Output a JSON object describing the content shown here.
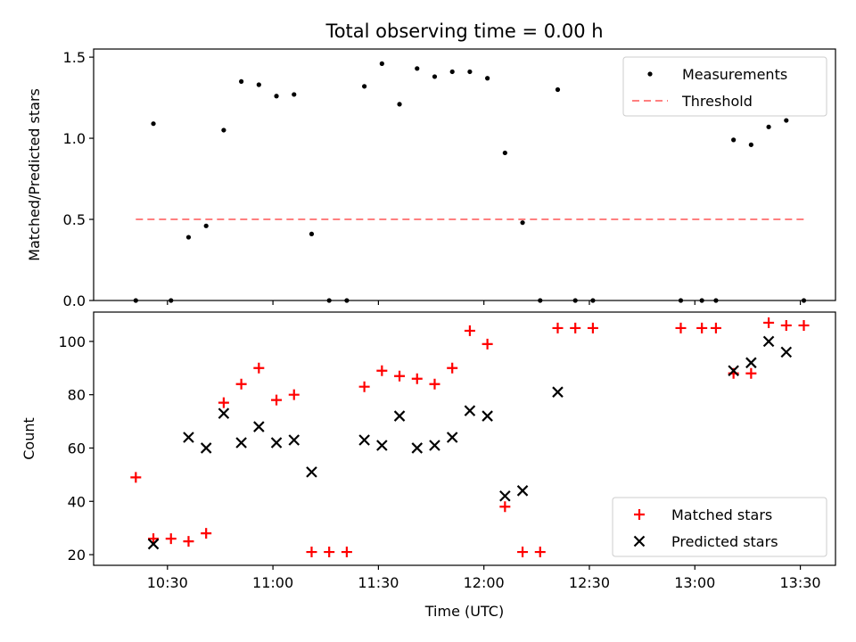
{
  "chart_data": [
    {
      "type": "scatter",
      "title": "Total observing time = 0.00 h",
      "xlabel": "",
      "ylabel": "Matched/Predicted stars",
      "ylim": [
        0,
        1.55
      ],
      "yticks": [
        "0.0",
        "0.5",
        "1.0",
        "1.5"
      ],
      "legend_position": "top-right",
      "series": [
        {
          "name": "Measurements",
          "marker": "dot",
          "color": "#000000",
          "points": [
            [
              "10:21",
              0.0
            ],
            [
              "10:26",
              1.09
            ],
            [
              "10:31",
              0.0
            ],
            [
              "10:36",
              0.39
            ],
            [
              "10:41",
              0.46
            ],
            [
              "10:46",
              1.05
            ],
            [
              "10:51",
              1.35
            ],
            [
              "10:56",
              1.33
            ],
            [
              "11:01",
              1.26
            ],
            [
              "11:06",
              1.27
            ],
            [
              "11:11",
              0.41
            ],
            [
              "11:16",
              0.0
            ],
            [
              "11:21",
              0.0
            ],
            [
              "11:26",
              1.32
            ],
            [
              "11:31",
              1.46
            ],
            [
              "11:36",
              1.21
            ],
            [
              "11:41",
              1.43
            ],
            [
              "11:46",
              1.38
            ],
            [
              "11:51",
              1.41
            ],
            [
              "11:56",
              1.41
            ],
            [
              "12:01",
              1.37
            ],
            [
              "12:06",
              0.91
            ],
            [
              "12:11",
              0.48
            ],
            [
              "12:16",
              0.0
            ],
            [
              "12:21",
              1.3
            ],
            [
              "12:26",
              0.0
            ],
            [
              "12:31",
              0.0
            ],
            [
              "12:56",
              0.0
            ],
            [
              "13:02",
              0.0
            ],
            [
              "13:06",
              0.0
            ],
            [
              "13:11",
              0.99
            ],
            [
              "13:16",
              0.96
            ],
            [
              "13:21",
              1.07
            ],
            [
              "13:26",
              1.11
            ],
            [
              "13:31",
              0.0
            ]
          ]
        },
        {
          "name": "Threshold",
          "marker": "dashed-line",
          "color": "#ff7f7f",
          "points": [
            [
              "10:21",
              0.5
            ],
            [
              "13:31",
              0.5
            ]
          ]
        }
      ]
    },
    {
      "type": "scatter",
      "title": "",
      "xlabel": "Time (UTC)",
      "ylabel": "Count",
      "ylim": [
        16,
        111
      ],
      "yticks": [
        "20",
        "40",
        "60",
        "80",
        "100"
      ],
      "xlim": [
        "10:09",
        "13:40"
      ],
      "xticks": [
        "10:30",
        "11:00",
        "11:30",
        "12:00",
        "12:30",
        "13:00",
        "13:30"
      ],
      "legend_position": "bottom-right",
      "series": [
        {
          "name": "Matched stars",
          "marker": "plus",
          "color": "#ff0000",
          "points": [
            [
              "10:21",
              49
            ],
            [
              "10:26",
              26
            ],
            [
              "10:31",
              26
            ],
            [
              "10:36",
              25
            ],
            [
              "10:41",
              28
            ],
            [
              "10:46",
              77
            ],
            [
              "10:51",
              84
            ],
            [
              "10:56",
              90
            ],
            [
              "11:01",
              78
            ],
            [
              "11:06",
              80
            ],
            [
              "11:11",
              21
            ],
            [
              "11:16",
              21
            ],
            [
              "11:21",
              21
            ],
            [
              "11:26",
              83
            ],
            [
              "11:31",
              89
            ],
            [
              "11:36",
              87
            ],
            [
              "11:41",
              86
            ],
            [
              "11:46",
              84
            ],
            [
              "11:51",
              90
            ],
            [
              "11:56",
              104
            ],
            [
              "12:01",
              99
            ],
            [
              "12:06",
              38
            ],
            [
              "12:11",
              21
            ],
            [
              "12:16",
              21
            ],
            [
              "12:21",
              105
            ],
            [
              "12:26",
              105
            ],
            [
              "12:31",
              105
            ],
            [
              "12:56",
              105
            ],
            [
              "13:02",
              105
            ],
            [
              "13:06",
              105
            ],
            [
              "13:11",
              88
            ],
            [
              "13:16",
              88
            ],
            [
              "13:21",
              107
            ],
            [
              "13:26",
              106
            ],
            [
              "13:31",
              106
            ]
          ]
        },
        {
          "name": "Predicted stars",
          "marker": "x",
          "color": "#000000",
          "points": [
            [
              "10:26",
              24
            ],
            [
              "10:36",
              64
            ],
            [
              "10:41",
              60
            ],
            [
              "10:46",
              73
            ],
            [
              "10:51",
              62
            ],
            [
              "10:56",
              68
            ],
            [
              "11:01",
              62
            ],
            [
              "11:06",
              63
            ],
            [
              "11:11",
              51
            ],
            [
              "11:26",
              63
            ],
            [
              "11:31",
              61
            ],
            [
              "11:36",
              72
            ],
            [
              "11:41",
              60
            ],
            [
              "11:46",
              61
            ],
            [
              "11:51",
              64
            ],
            [
              "11:56",
              74
            ],
            [
              "12:01",
              72
            ],
            [
              "12:06",
              42
            ],
            [
              "12:11",
              44
            ],
            [
              "12:21",
              81
            ],
            [
              "13:11",
              89
            ],
            [
              "13:16",
              92
            ],
            [
              "13:21",
              100
            ],
            [
              "13:26",
              96
            ]
          ]
        }
      ]
    }
  ]
}
